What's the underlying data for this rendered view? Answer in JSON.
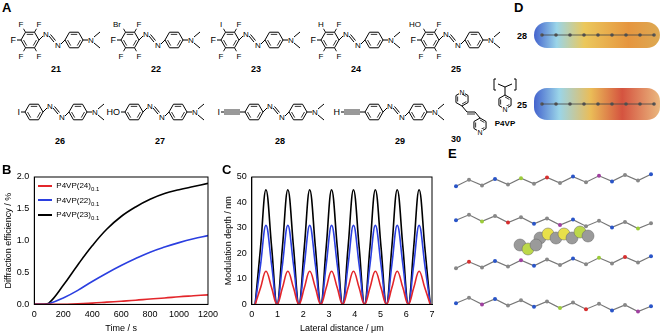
{
  "structures": {
    "label": "A",
    "compounds": [
      {
        "id": "21",
        "kind": "azo",
        "end": "F",
        "ring": [
          "F",
          "F",
          "F",
          "F"
        ],
        "alkyne": false,
        "azo": [
          "N",
          "N"
        ],
        "amine": "N"
      },
      {
        "id": "22",
        "kind": "azo",
        "end": "F",
        "ring": [
          "Br",
          "F",
          "F",
          "F"
        ],
        "alkyne": false,
        "azo": [
          "N",
          "N"
        ],
        "amine": "N"
      },
      {
        "id": "23",
        "kind": "azo",
        "end": "F",
        "ring": [
          "I",
          "F",
          "F",
          "F"
        ],
        "alkyne": false,
        "azo": [
          "N",
          "N"
        ],
        "amine": "N"
      },
      {
        "id": "24",
        "kind": "azo",
        "end": "F",
        "ring": [
          "H",
          "F",
          "F",
          "F"
        ],
        "alkyne": false,
        "azo": [
          "N",
          "N"
        ],
        "amine": "N"
      },
      {
        "id": "25",
        "kind": "azo",
        "end": "F",
        "ring": [
          "HO",
          "F",
          "F",
          "F"
        ],
        "alkyne": false,
        "azo": [
          "N",
          "N"
        ],
        "amine": "N"
      },
      {
        "id": "26",
        "kind": "azo",
        "end": "I",
        "ring": [],
        "alkyne": false,
        "azo": [
          "N",
          "N"
        ],
        "amine": "N"
      },
      {
        "id": "27",
        "kind": "azo",
        "end": "HO",
        "ring": [],
        "alkyne": false,
        "azo": [
          "N",
          "N"
        ],
        "amine": "N"
      },
      {
        "id": "28",
        "kind": "azo",
        "end": "I",
        "ring": [],
        "alkyne": true,
        "azo": [
          "N",
          "N"
        ],
        "amine": "N"
      },
      {
        "id": "29",
        "kind": "azo",
        "end": "H",
        "ring": [],
        "alkyne": true,
        "azo": [
          "N",
          "N"
        ],
        "amine": "N"
      },
      {
        "id": "30",
        "kind": "bipyridylethylene",
        "atoms": [
          "N",
          "N"
        ]
      },
      {
        "id": "P4VP",
        "kind": "polymer",
        "atoms": [
          "N"
        ]
      }
    ]
  },
  "chart_data": [
    {
      "label": "B",
      "type": "line",
      "x_label": "Time / s",
      "y_label": "Diffraction efficiency / %",
      "x": [
        0,
        50,
        100,
        200,
        300,
        400,
        500,
        600,
        700,
        800,
        900,
        1000,
        1100,
        1200
      ],
      "series": [
        {
          "name": "P4VP(24)0.1",
          "color": "#e3262b",
          "values": [
            0,
            0,
            0,
            0,
            0.01,
            0.02,
            0.035,
            0.05,
            0.065,
            0.085,
            0.1,
            0.12,
            0.135,
            0.15
          ]
        },
        {
          "name": "P4VP(22)0.1",
          "color": "#2b3fe0",
          "values": [
            0,
            0,
            0.01,
            0.1,
            0.22,
            0.36,
            0.49,
            0.61,
            0.72,
            0.82,
            0.9,
            0.97,
            1.03,
            1.08
          ]
        },
        {
          "name": "P4VP(23)0.1",
          "color": "#000000",
          "values": [
            0,
            0,
            0.02,
            0.3,
            0.62,
            0.92,
            1.18,
            1.38,
            1.53,
            1.65,
            1.74,
            1.8,
            1.85,
            1.9
          ]
        }
      ],
      "xlim": [
        0,
        1200
      ],
      "xticks": [
        0,
        200,
        400,
        600,
        800,
        1000,
        1200
      ],
      "ylim": [
        0,
        2
      ],
      "yticks": [
        {
          "value": 0,
          "label": "0.0"
        },
        0.5,
        {
          "value": 1,
          "label": "1.0"
        },
        1.5,
        {
          "value": 2,
          "label": "2.0"
        }
      ],
      "grid": false,
      "legend": "upper left"
    },
    {
      "label": "C",
      "type": "line",
      "x_label": "Lateral distance / μm",
      "y_label": "Modulation depth / nm",
      "x": [
        0.13,
        0.34,
        0.55,
        0.77,
        0.98,
        1.19,
        1.4,
        1.62,
        1.83,
        2.04,
        2.25,
        2.47,
        2.68,
        2.89,
        3.1,
        3.32,
        3.53,
        3.74,
        3.95,
        4.17,
        4.38,
        4.59,
        4.8,
        5.02,
        5.23,
        5.44,
        5.65,
        5.87,
        6.08,
        6.29,
        6.5,
        6.72,
        6.93
      ],
      "series": [
        {
          "color": "#e3262b",
          "values": [
            0,
            6.5,
            13,
            6.5,
            0,
            6.5,
            13,
            6.5,
            0,
            6.5,
            13,
            6.5,
            0,
            6.5,
            13,
            6.5,
            0,
            6.5,
            13,
            6.5,
            0,
            6.5,
            13,
            6.5,
            0,
            6.5,
            13,
            6.5,
            0,
            6.5,
            13,
            6.5,
            0
          ]
        },
        {
          "color": "#2b3fe0",
          "values": [
            0,
            15.5,
            31,
            15.5,
            0,
            15.5,
            31,
            15.5,
            0,
            15.5,
            31,
            15.5,
            0,
            15.5,
            31,
            15.5,
            0,
            15.5,
            31,
            15.5,
            0,
            15.5,
            31,
            15.5,
            0,
            15.5,
            31,
            15.5,
            0,
            15.5,
            31,
            15.5,
            0
          ]
        },
        {
          "color": "#000000",
          "values": [
            0,
            22.5,
            45,
            22.5,
            0,
            22.5,
            45,
            22.5,
            0,
            22.5,
            45,
            22.5,
            0,
            22.5,
            45,
            22.5,
            0,
            22.5,
            45,
            22.5,
            0,
            22.5,
            45,
            22.5,
            0,
            22.5,
            45,
            22.5,
            0,
            22.5,
            45,
            22.5,
            0
          ]
        }
      ],
      "xlim": [
        0,
        7
      ],
      "xticks": [
        0,
        1,
        2,
        3,
        4,
        5,
        6,
        7
      ],
      "ylim": [
        0,
        50
      ],
      "yticks": [
        0,
        10,
        20,
        30,
        40,
        50
      ],
      "grid": false
    }
  ],
  "esp_maps": {
    "label": "D",
    "maps": [
      "28",
      "25"
    ]
  },
  "crystal": {
    "label": "E"
  }
}
